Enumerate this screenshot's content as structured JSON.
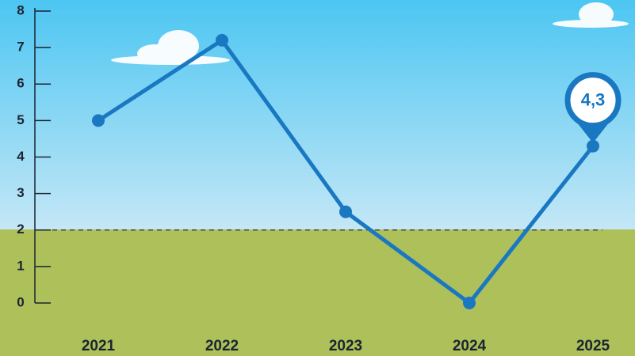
{
  "chart_data": {
    "type": "line",
    "categories": [
      "2021",
      "2022",
      "2023",
      "2024",
      "2025"
    ],
    "series": [
      {
        "color": "#1a78c2",
        "values": [
          5,
          7.2,
          2.5,
          0,
          4.3
        ],
        "value_labels": [
          null,
          null,
          null,
          null,
          "4,3"
        ]
      }
    ],
    "ylim": [
      0,
      8
    ],
    "yticks": [
      0,
      1,
      2,
      3,
      4,
      5,
      6,
      7,
      8
    ],
    "threshold": 2
  }
}
